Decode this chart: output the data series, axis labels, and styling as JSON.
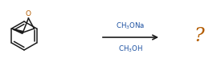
{
  "bg_color": "#ffffff",
  "arrow_color": "#1a1a1a",
  "reagent_color": "#1a4fa0",
  "structure_color": "#1a1a1a",
  "epoxide_o_color": "#b35c00",
  "question_color": "#b35c00",
  "reagent_top": "CH$_3$ONa",
  "reagent_bot": "CH$_3$OH",
  "question_mark": "?",
  "fig_width": 2.7,
  "fig_height": 0.97,
  "dpi": 100
}
